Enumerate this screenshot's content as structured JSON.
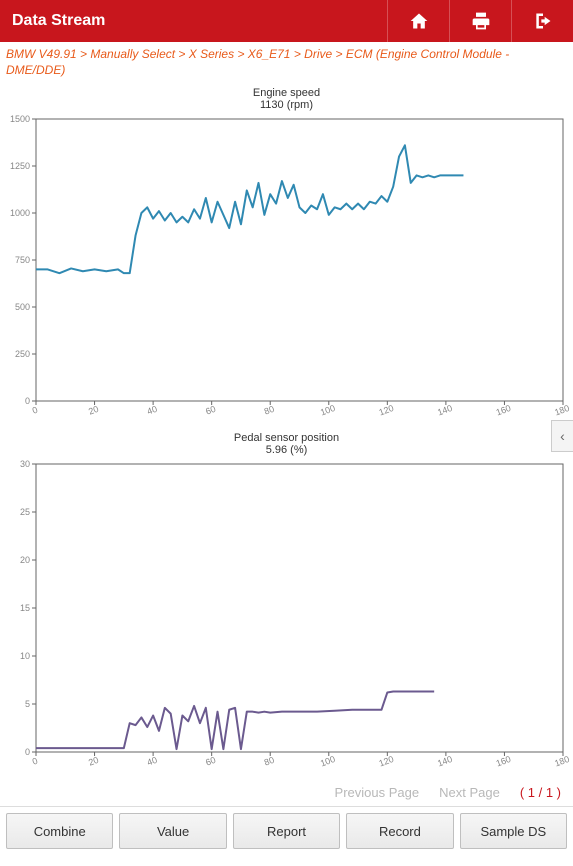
{
  "header": {
    "title": "Data Stream",
    "home_icon": "home-icon",
    "print_icon": "print-icon",
    "exit_icon": "exit-icon"
  },
  "breadcrumb": "BMW V49.91 > Manually Select > X Series > X6_E71 > Drive > ECM (Engine Control Module - DME/DDE)",
  "chart1": {
    "title": "Engine speed",
    "subtitle": "1130 (rpm)",
    "line_color": "#2f89b2",
    "axis_color": "#666666",
    "grid_color": "#e8e8e8",
    "label_color": "#878787",
    "label_fontsize": 9,
    "xlim": [
      0,
      180
    ],
    "ylim": [
      0,
      1500
    ],
    "yticks": [
      0,
      250,
      500,
      750,
      1000,
      1250,
      1500
    ],
    "xticks": [
      0,
      20,
      40,
      60,
      80,
      100,
      120,
      140,
      160,
      180
    ],
    "data": [
      [
        0,
        700
      ],
      [
        4,
        700
      ],
      [
        8,
        680
      ],
      [
        12,
        705
      ],
      [
        16,
        690
      ],
      [
        20,
        700
      ],
      [
        24,
        690
      ],
      [
        28,
        700
      ],
      [
        30,
        680
      ],
      [
        32,
        680
      ],
      [
        34,
        880
      ],
      [
        36,
        1000
      ],
      [
        38,
        1030
      ],
      [
        40,
        970
      ],
      [
        42,
        1010
      ],
      [
        44,
        960
      ],
      [
        46,
        1000
      ],
      [
        48,
        950
      ],
      [
        50,
        980
      ],
      [
        52,
        950
      ],
      [
        54,
        1020
      ],
      [
        56,
        970
      ],
      [
        58,
        1080
      ],
      [
        60,
        950
      ],
      [
        62,
        1060
      ],
      [
        64,
        990
      ],
      [
        66,
        920
      ],
      [
        68,
        1060
      ],
      [
        70,
        940
      ],
      [
        72,
        1120
      ],
      [
        74,
        1030
      ],
      [
        76,
        1160
      ],
      [
        78,
        990
      ],
      [
        80,
        1100
      ],
      [
        82,
        1050
      ],
      [
        84,
        1170
      ],
      [
        86,
        1080
      ],
      [
        88,
        1150
      ],
      [
        90,
        1030
      ],
      [
        92,
        1000
      ],
      [
        94,
        1040
      ],
      [
        96,
        1020
      ],
      [
        98,
        1100
      ],
      [
        100,
        990
      ],
      [
        102,
        1030
      ],
      [
        104,
        1020
      ],
      [
        106,
        1050
      ],
      [
        108,
        1020
      ],
      [
        110,
        1050
      ],
      [
        112,
        1020
      ],
      [
        114,
        1060
      ],
      [
        116,
        1050
      ],
      [
        118,
        1090
      ],
      [
        120,
        1060
      ],
      [
        122,
        1140
      ],
      [
        124,
        1300
      ],
      [
        126,
        1360
      ],
      [
        128,
        1160
      ],
      [
        130,
        1200
      ],
      [
        132,
        1190
      ],
      [
        134,
        1200
      ],
      [
        136,
        1190
      ],
      [
        138,
        1200
      ],
      [
        140,
        1200
      ],
      [
        142,
        1200
      ],
      [
        144,
        1200
      ],
      [
        146,
        1200
      ]
    ]
  },
  "chart2": {
    "title": "Pedal sensor position",
    "subtitle": "5.96 (%)",
    "line_color": "#6b5a8f",
    "axis_color": "#666666",
    "grid_color": "#e8e8e8",
    "label_color": "#878787",
    "label_fontsize": 9,
    "xlim": [
      0,
      180
    ],
    "ylim": [
      0,
      30
    ],
    "yticks": [
      0,
      5,
      10,
      15,
      20,
      25,
      30
    ],
    "xticks": [
      0,
      20,
      40,
      60,
      80,
      100,
      120,
      140,
      160,
      180
    ],
    "data": [
      [
        0,
        0.4
      ],
      [
        6,
        0.4
      ],
      [
        12,
        0.4
      ],
      [
        18,
        0.4
      ],
      [
        24,
        0.4
      ],
      [
        28,
        0.4
      ],
      [
        30,
        0.4
      ],
      [
        32,
        3.0
      ],
      [
        34,
        2.8
      ],
      [
        36,
        3.6
      ],
      [
        38,
        2.6
      ],
      [
        40,
        3.8
      ],
      [
        42,
        2.2
      ],
      [
        44,
        4.6
      ],
      [
        46,
        4.0
      ],
      [
        48,
        0.3
      ],
      [
        50,
        3.8
      ],
      [
        52,
        3.2
      ],
      [
        54,
        4.8
      ],
      [
        56,
        3.0
      ],
      [
        58,
        4.6
      ],
      [
        60,
        0.3
      ],
      [
        62,
        4.2
      ],
      [
        64,
        0.3
      ],
      [
        66,
        4.4
      ],
      [
        68,
        4.6
      ],
      [
        70,
        0.3
      ],
      [
        72,
        4.2
      ],
      [
        74,
        4.2
      ],
      [
        76,
        4.1
      ],
      [
        78,
        4.2
      ],
      [
        80,
        4.1
      ],
      [
        84,
        4.2
      ],
      [
        90,
        4.2
      ],
      [
        96,
        4.2
      ],
      [
        102,
        4.3
      ],
      [
        108,
        4.4
      ],
      [
        114,
        4.4
      ],
      [
        118,
        4.4
      ],
      [
        120,
        6.2
      ],
      [
        122,
        6.3
      ],
      [
        126,
        6.3
      ],
      [
        130,
        6.3
      ],
      [
        134,
        6.3
      ],
      [
        136,
        6.3
      ]
    ]
  },
  "pager": {
    "prev": "Previous Page",
    "next": "Next Page",
    "count": "( 1 / 1 )"
  },
  "buttons": {
    "combine": "Combine",
    "value": "Value",
    "report": "Report",
    "record": "Record",
    "sample": "Sample DS"
  }
}
